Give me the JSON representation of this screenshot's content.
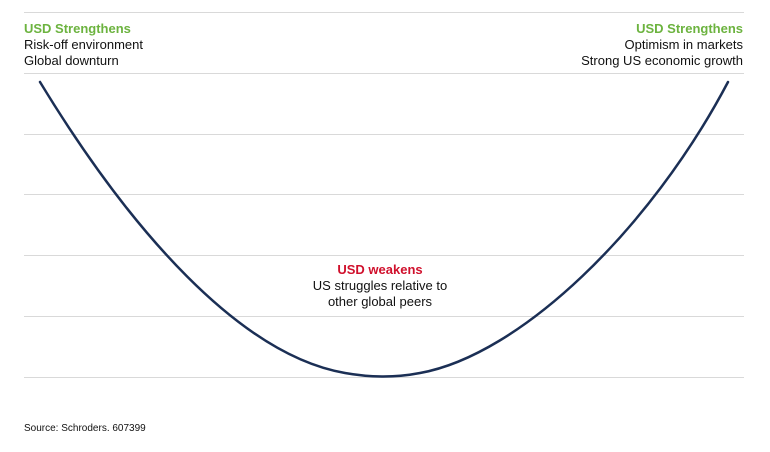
{
  "diagram": {
    "colors": {
      "strengthen": "#6cb33f",
      "weaken": "#d0102c",
      "curve": "#1b2f55",
      "grid": "#d9d9d9",
      "text": "#111111"
    },
    "left_label": {
      "heading": "USD Strengthens",
      "lines": [
        "Risk-off environment",
        "Global downturn"
      ]
    },
    "right_label": {
      "heading": "USD Strengthens",
      "lines": [
        "Optimism in markets",
        "Strong US economic growth"
      ]
    },
    "center_label": {
      "heading": "USD weakens",
      "lines": [
        "US struggles relative to",
        "other global peers"
      ]
    }
  },
  "source": "Source: Schroders. 607399"
}
